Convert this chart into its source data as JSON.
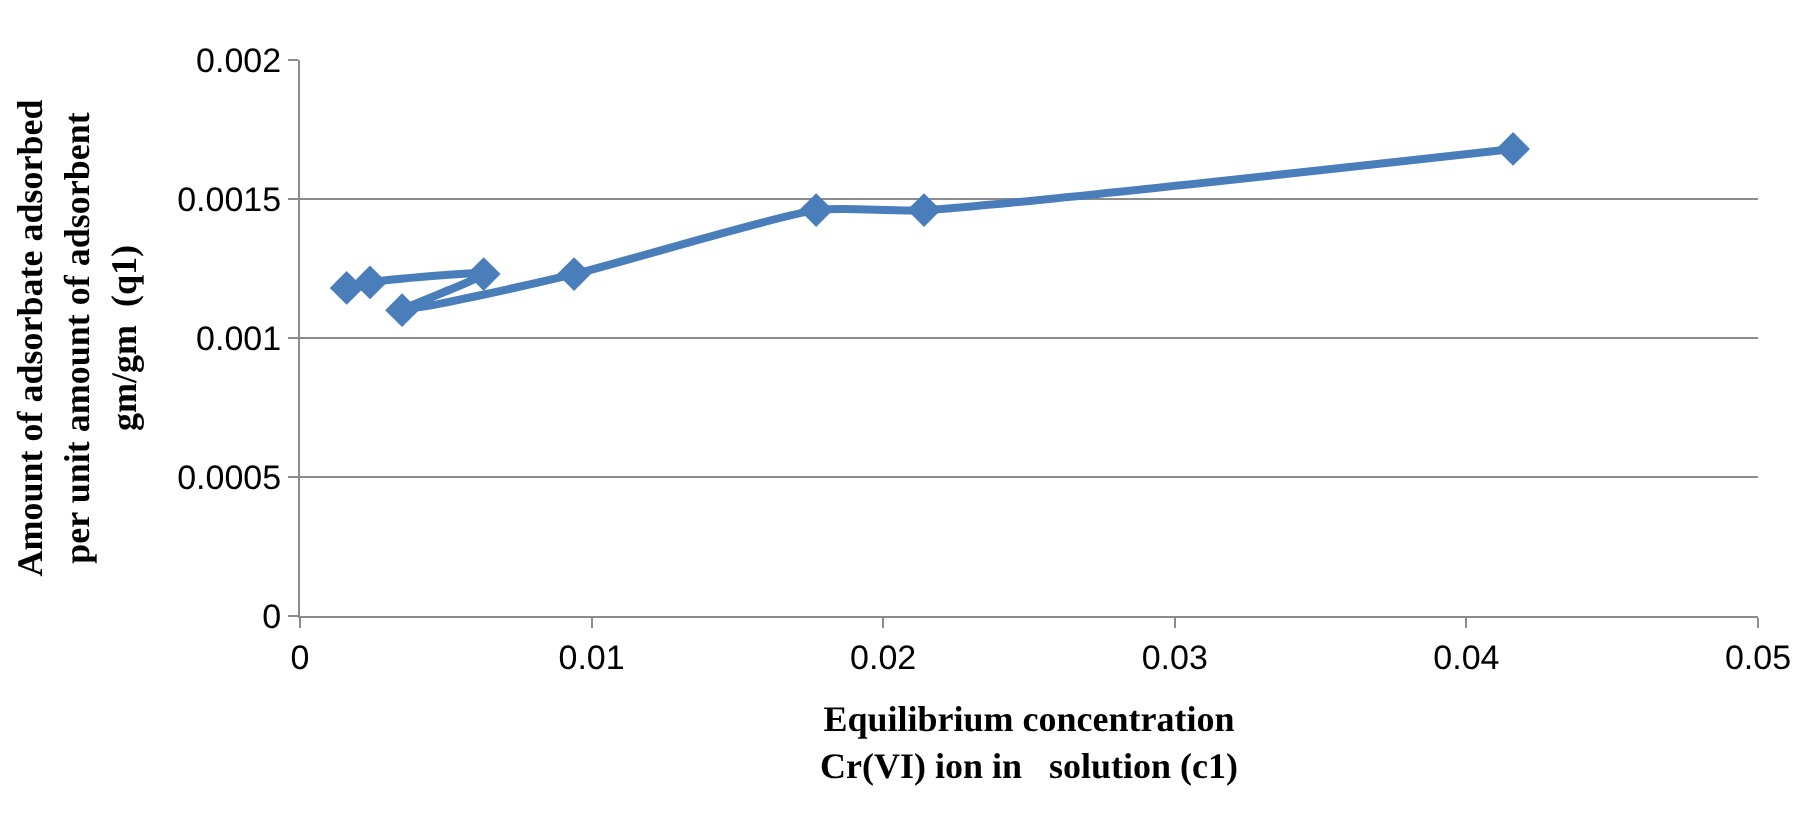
{
  "chart_data": {
    "type": "line",
    "xlabel": "Equilibrium concentration\nCr(VI) ion in   solution (c1)",
    "ylabel": "Amount of adsorbate adsorbed\nper unit amount of adsorbent\ngm/gm  (q1)",
    "x": [
      0.0016,
      0.0024,
      0.0063,
      0.0035,
      0.0094,
      0.0177,
      0.0214,
      0.0416
    ],
    "series": [
      {
        "color": "#4a7ebb",
        "values": [
          0.00118,
          0.0012,
          0.00123,
          0.0011,
          0.00123,
          0.00146,
          0.00146,
          0.00168
        ]
      }
    ],
    "xlim": [
      0,
      0.05
    ],
    "xticks": [
      0,
      0.01,
      0.02,
      0.03,
      0.04,
      0.05
    ],
    "ylim": [
      0,
      0.002
    ],
    "yticks": [
      0,
      0.0005,
      0.001,
      0.0015,
      0.002
    ],
    "grid": "y",
    "legend": false,
    "marker": "diamond",
    "line_style": "solid"
  }
}
